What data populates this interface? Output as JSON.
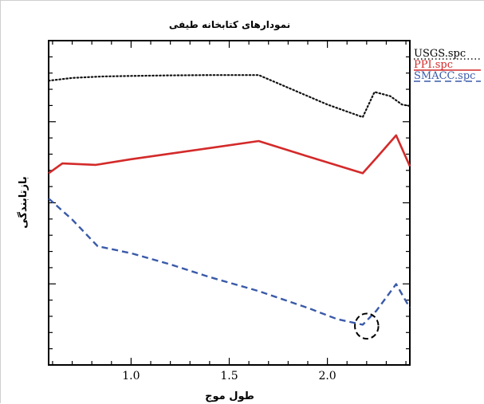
{
  "colors": {
    "usgs": "#111111",
    "ppi": "#d42a2a",
    "smacc": "#3a5aa8",
    "axis": "#000000"
  },
  "chart_data": {
    "type": "line",
    "title": "نمودارهای کتابخانه طیفی",
    "xlabel": "طول موج",
    "ylabel": "بازتابندگی",
    "xlim": [
      0.58,
      2.42
    ],
    "ylim": [
      0,
      1
    ],
    "x_ticks": [
      1.0,
      1.5,
      2.0
    ],
    "x_tick_labels": [
      "1.0",
      "1.5",
      "2.0"
    ],
    "y_ticks_visible_labels": false,
    "grid": false,
    "legend": "right",
    "series": [
      {
        "name": "USGS.spc",
        "style": "dotted",
        "x": [
          0.58,
          0.7,
          0.85,
          1.0,
          1.2,
          1.4,
          1.65,
          2.0,
          2.18,
          2.24,
          2.32,
          2.38,
          2.42
        ],
        "y": [
          0.985,
          0.995,
          1.0,
          1.002,
          1.004,
          1.005,
          1.005,
          0.9,
          0.855,
          0.945,
          0.93,
          0.9,
          0.895
        ]
      },
      {
        "name": "PPI.spc",
        "style": "solid",
        "x": [
          0.58,
          0.65,
          0.82,
          1.0,
          1.2,
          1.4,
          1.65,
          1.9,
          2.18,
          2.25,
          2.35,
          2.42
        ],
        "y": [
          0.655,
          0.69,
          0.685,
          0.705,
          0.725,
          0.745,
          0.77,
          0.715,
          0.655,
          0.71,
          0.79,
          0.68
        ]
      },
      {
        "name": "SMACC.spc",
        "style": "dashed",
        "x": [
          0.58,
          0.7,
          0.83,
          1.0,
          1.2,
          1.4,
          1.65,
          1.9,
          2.05,
          2.18,
          2.25,
          2.35,
          2.42
        ],
        "y": [
          0.565,
          0.49,
          0.395,
          0.37,
          0.33,
          0.285,
          0.235,
          0.175,
          0.135,
          0.115,
          0.165,
          0.26,
          0.175
        ]
      }
    ],
    "annotations": [
      {
        "type": "ellipse",
        "style": "dashed",
        "x": 2.2,
        "y": 0.11,
        "rx": 0.06,
        "ry": 0.045
      }
    ]
  }
}
